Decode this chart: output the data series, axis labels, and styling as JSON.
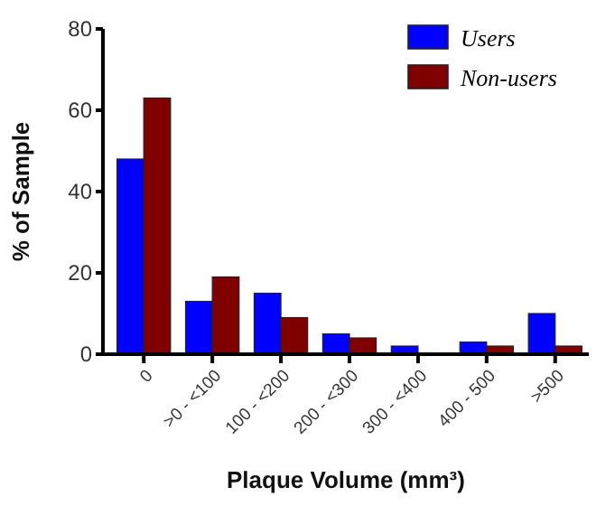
{
  "chart_data": {
    "type": "bar",
    "xlabel": "Plaque Volume (mm³)",
    "ylabel": "% of Sample",
    "categories": [
      "0",
      ">0 - <100",
      "100 - <200",
      "200 - <300",
      "300 - <400",
      "400 - 500",
      ">500"
    ],
    "series": [
      {
        "name": "Users",
        "color": "#0000ff",
        "values": [
          48,
          13,
          15,
          5,
          2,
          3,
          10
        ]
      },
      {
        "name": "Non-users",
        "color": "#800000",
        "values": [
          63,
          19,
          9,
          4,
          0,
          2,
          2
        ]
      }
    ],
    "ylim": [
      0,
      80
    ],
    "yticks": [
      0,
      20,
      40,
      60,
      80
    ],
    "grid": false,
    "legend": "top right"
  }
}
